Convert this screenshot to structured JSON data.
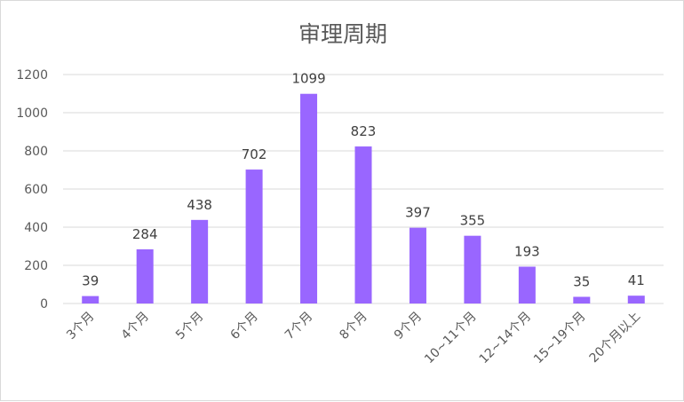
{
  "chart_data": {
    "type": "bar",
    "title": "审理周期",
    "categories": [
      "3个月",
      "4个月",
      "5个月",
      "6个月",
      "7个月",
      "8个月",
      "9个月",
      "10~11个月",
      "12~14个月",
      "15~19个月",
      "20个月以上"
    ],
    "values": [
      39,
      284,
      438,
      702,
      1099,
      823,
      397,
      355,
      193,
      35,
      41
    ],
    "ylim": [
      0,
      1200
    ],
    "yticks": [
      0,
      200,
      400,
      600,
      800,
      1000,
      1200
    ],
    "grid": true,
    "legend": "none",
    "colors": {
      "bar": "#9966ff",
      "gridline": "#d9d9d9",
      "text": "#595959"
    }
  }
}
